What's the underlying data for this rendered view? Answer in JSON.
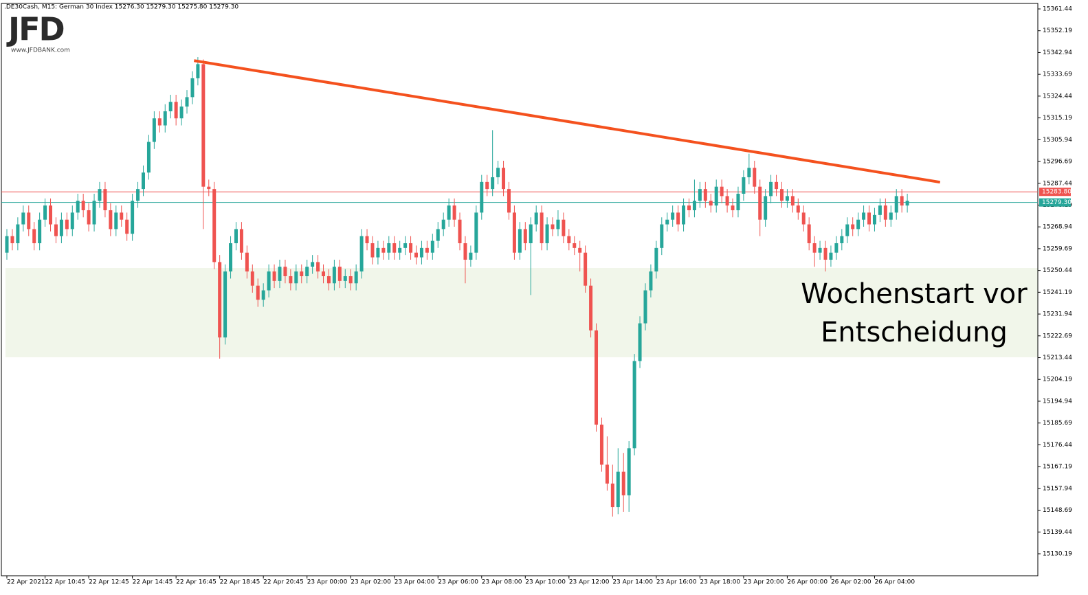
{
  "chart_data": {
    "type": "candlestick",
    "title": ".DE30Cash, M15:  German 30 Index  15276.30 15279.30 15275.80 15279.30",
    "logo": "JFD",
    "logo_url": "www.JFDBANK.com",
    "up_color": "#26a69a",
    "down_color": "#ef5350",
    "ylim": [
      15120.86,
      15363.77
    ],
    "yticks": [
      15361.44,
      15352.19,
      15342.94,
      15333.69,
      15324.44,
      15315.19,
      15305.94,
      15296.69,
      15287.44,
      15278.19,
      15268.94,
      15259.69,
      15250.44,
      15241.19,
      15231.94,
      15222.69,
      15213.44,
      15204.19,
      15194.94,
      15185.69,
      15176.44,
      15167.19,
      15157.94,
      15148.69,
      15139.44,
      15130.19
    ],
    "xticks": [
      {
        "value": 0,
        "label": "22 Apr 2021"
      },
      {
        "value": 7,
        "label": "22 Apr 10:45"
      },
      {
        "value": 15,
        "label": "22 Apr 12:45"
      },
      {
        "value": 23,
        "label": "22 Apr 14:45"
      },
      {
        "value": 31,
        "label": "22 Apr 16:45"
      },
      {
        "value": 39,
        "label": "22 Apr 18:45"
      },
      {
        "value": 47,
        "label": "22 Apr 20:45"
      },
      {
        "value": 55,
        "label": "23 Apr 00:00"
      },
      {
        "value": 63,
        "label": "23 Apr 02:00"
      },
      {
        "value": 71,
        "label": "23 Apr 04:00"
      },
      {
        "value": 79,
        "label": "23 Apr 06:00"
      },
      {
        "value": 87,
        "label": "23 Apr 08:00"
      },
      {
        "value": 95,
        "label": "23 Apr 10:00"
      },
      {
        "value": 103,
        "label": "23 Apr 12:00"
      },
      {
        "value": 111,
        "label": "23 Apr 14:00"
      },
      {
        "value": 119,
        "label": "23 Apr 16:00"
      },
      {
        "value": 127,
        "label": "23 Apr 18:00"
      },
      {
        "value": 135,
        "label": "23 Apr 20:00"
      },
      {
        "value": 143,
        "label": "26 Apr 00:00"
      },
      {
        "value": 151,
        "label": "26 Apr 02:00"
      },
      {
        "value": 159,
        "label": "26 Apr 04:00"
      }
    ],
    "price_lines": [
      {
        "value": 15283.8,
        "label": "15283.80",
        "color": "#ef5350"
      },
      {
        "value": 15279.3,
        "label": "15279.30",
        "color": "#26a69a"
      }
    ],
    "zone": {
      "ylim": [
        15213.6,
        15251.5
      ],
      "color": "#f1f6ea"
    },
    "trendline": {
      "x": [
        34.3,
        171
      ],
      "y": [
        15339.5,
        15287.9
      ],
      "color": "#f4511e"
    },
    "annotation": [
      "Wochenstart vor",
      "Entscheidung"
    ],
    "open": [
      15258,
      15265,
      15262,
      15270,
      15275,
      15268,
      15262,
      15272,
      15278,
      15270,
      15265,
      15272,
      15268,
      15275,
      15280,
      15276,
      15270,
      15280,
      15285,
      15276,
      15268,
      15275,
      15272,
      15266,
      15280,
      15285,
      15292,
      15305,
      15315,
      15312,
      15318,
      15322,
      15315,
      15320,
      15324,
      15332,
      15338,
      15286,
      15285,
      15254,
      15222,
      15250,
      15262,
      15268,
      15258,
      15250,
      15244,
      15238,
      15242,
      15250,
      15246,
      15252,
      15248,
      15245,
      15250,
      15248,
      15252,
      15254,
      15250,
      15248,
      15245,
      15252,
      15246,
      15248,
      15245,
      15250,
      15265,
      15262,
      15256,
      15260,
      15258,
      15262,
      15258,
      15260,
      15262,
      15258,
      15256,
      15260,
      15258,
      15263,
      15268,
      15272,
      15278,
      15272,
      15262,
      15255,
      15258,
      15275,
      15288,
      15285,
      15290,
      15294,
      15285,
      15275,
      15258,
      15268,
      15262,
      15270,
      15275,
      15262,
      15270,
      15268,
      15272,
      15265,
      15262,
      15260,
      15258,
      15244,
      15225,
      15185,
      15168,
      15160,
      15150,
      15165,
      15155,
      15175,
      15212,
      15228,
      15242,
      15250,
      15260,
      15270,
      15272,
      15275,
      15270,
      15278,
      15276,
      15280,
      15285,
      15280,
      15278,
      15286,
      15282,
      15278,
      15276,
      15283,
      15290,
      15294,
      15286,
      15272,
      15282,
      15288,
      15285,
      15280,
      15282,
      15278,
      15275,
      15270,
      15262,
      15258,
      15260,
      15255,
      15258,
      15262,
      15265,
      15270,
      15268,
      15272,
      15275,
      15270,
      15274,
      15278,
      15272,
      15275,
      15282,
      15278
    ],
    "high": [
      15268,
      15268,
      15273,
      15278,
      15278,
      15271,
      15275,
      15281,
      15281,
      15273,
      15275,
      15275,
      15278,
      15283,
      15283,
      15279,
      15283,
      15288,
      15288,
      15279,
      15278,
      15278,
      15275,
      15283,
      15288,
      15295,
      15308,
      15318,
      15318,
      15321,
      15325,
      15325,
      15323,
      15327,
      15335,
      15341,
      15340,
      15289,
      15288,
      15257,
      15253,
      15265,
      15271,
      15271,
      15261,
      15253,
      15247,
      15245,
      15253,
      15253,
      15255,
      15255,
      15251,
      15253,
      15253,
      15255,
      15257,
      15257,
      15253,
      15251,
      15255,
      15255,
      15251,
      15251,
      15253,
      15268,
      15268,
      15265,
      15263,
      15263,
      15265,
      15265,
      15263,
      15265,
      15265,
      15261,
      15263,
      15263,
      15266,
      15271,
      15275,
      15281,
      15281,
      15275,
      15265,
      15261,
      15278,
      15291,
      15291,
      15310,
      15297,
      15297,
      15288,
      15278,
      15271,
      15271,
      15273,
      15278,
      15278,
      15273,
      15273,
      15276,
      15275,
      15268,
      15265,
      15263,
      15261,
      15247,
      15228,
      15188,
      15180,
      15168,
      15175,
      15173,
      15178,
      15215,
      15231,
      15245,
      15253,
      15263,
      15273,
      15275,
      15278,
      15278,
      15281,
      15281,
      15289,
      15288,
      15288,
      15283,
      15289,
      15289,
      15285,
      15281,
      15286,
      15293,
      15300,
      15297,
      15289,
      15285,
      15291,
      15291,
      15288,
      15285,
      15285,
      15281,
      15278,
      15273,
      15265,
      15263,
      15263,
      15261,
      15265,
      15268,
      15273,
      15273,
      15275,
      15278,
      15278,
      15277,
      15281,
      15281,
      15278,
      15285,
      15285,
      15283
    ],
    "low": [
      15255,
      15259,
      15259,
      15267,
      15265,
      15259,
      15259,
      15269,
      15267,
      15262,
      15262,
      15265,
      15265,
      15272,
      15273,
      15267,
      15267,
      15277,
      15273,
      15265,
      15265,
      15269,
      15263,
      15263,
      15277,
      15282,
      15289,
      15302,
      15309,
      15309,
      15315,
      15312,
      15312,
      15317,
      15321,
      15329,
      15268,
      15282,
      15251,
      15213,
      15219,
      15247,
      15259,
      15255,
      15247,
      15241,
      15235,
      15235,
      15239,
      15243,
      15243,
      15245,
      15242,
      15242,
      15245,
      15245,
      15249,
      15247,
      15245,
      15242,
      15242,
      15243,
      15243,
      15242,
      15242,
      15247,
      15259,
      15253,
      15253,
      15255,
      15255,
      15255,
      15255,
      15257,
      15255,
      15253,
      15253,
      15255,
      15255,
      15260,
      15265,
      15269,
      15269,
      15259,
      15245,
      15252,
      15255,
      15272,
      15282,
      15282,
      15287,
      15282,
      15272,
      15255,
      15255,
      15259,
      15240,
      15267,
      15259,
      15259,
      15265,
      15265,
      15262,
      15259,
      15257,
      15250,
      15241,
      15222,
      15182,
      15165,
      15157,
      15146,
      15147,
      15148,
      15148,
      15172,
      15209,
      15225,
      15239,
      15247,
      15257,
      15267,
      15269,
      15267,
      15267,
      15273,
      15273,
      15277,
      15277,
      15275,
      15275,
      15279,
      15275,
      15273,
      15273,
      15280,
      15287,
      15283,
      15265,
      15269,
      15279,
      15282,
      15277,
      15277,
      15275,
      15272,
      15267,
      15259,
      15252,
      15255,
      15250,
      15252,
      15255,
      15259,
      15262,
      15265,
      15265,
      15269,
      15267,
      15267,
      15271,
      15269,
      15269,
      15272,
      15275,
      15275
    ],
    "close": [
      15265,
      15262,
      15270,
      15275,
      15268,
      15262,
      15272,
      15278,
      15270,
      15265,
      15272,
      15268,
      15275,
      15280,
      15276,
      15270,
      15280,
      15285,
      15276,
      15268,
      15275,
      15272,
      15266,
      15280,
      15285,
      15292,
      15305,
      15315,
      15312,
      15318,
      15322,
      15315,
      15320,
      15324,
      15332,
      15338,
      15286,
      15285,
      15254,
      15222,
      15250,
      15262,
      15268,
      15258,
      15250,
      15244,
      15238,
      15242,
      15250,
      15246,
      15252,
      15248,
      15245,
      15250,
      15248,
      15252,
      15254,
      15250,
      15248,
      15245,
      15252,
      15246,
      15248,
      15245,
      15250,
      15265,
      15262,
      15256,
      15260,
      15258,
      15262,
      15258,
      15260,
      15262,
      15258,
      15256,
      15260,
      15258,
      15263,
      15268,
      15272,
      15278,
      15272,
      15262,
      15255,
      15258,
      15275,
      15288,
      15285,
      15290,
      15294,
      15285,
      15275,
      15258,
      15268,
      15262,
      15270,
      15275,
      15262,
      15270,
      15268,
      15272,
      15265,
      15262,
      15260,
      15258,
      15244,
      15225,
      15185,
      15168,
      15160,
      15150,
      15165,
      15155,
      15175,
      15212,
      15228,
      15242,
      15250,
      15260,
      15270,
      15272,
      15275,
      15270,
      15278,
      15276,
      15280,
      15285,
      15280,
      15278,
      15286,
      15282,
      15278,
      15276,
      15283,
      15290,
      15294,
      15286,
      15272,
      15282,
      15288,
      15285,
      15280,
      15282,
      15278,
      15275,
      15270,
      15262,
      15258,
      15260,
      15255,
      15258,
      15262,
      15265,
      15270,
      15268,
      15272,
      15275,
      15270,
      15274,
      15278,
      15272,
      15275,
      15282,
      15278,
      15280
    ]
  }
}
